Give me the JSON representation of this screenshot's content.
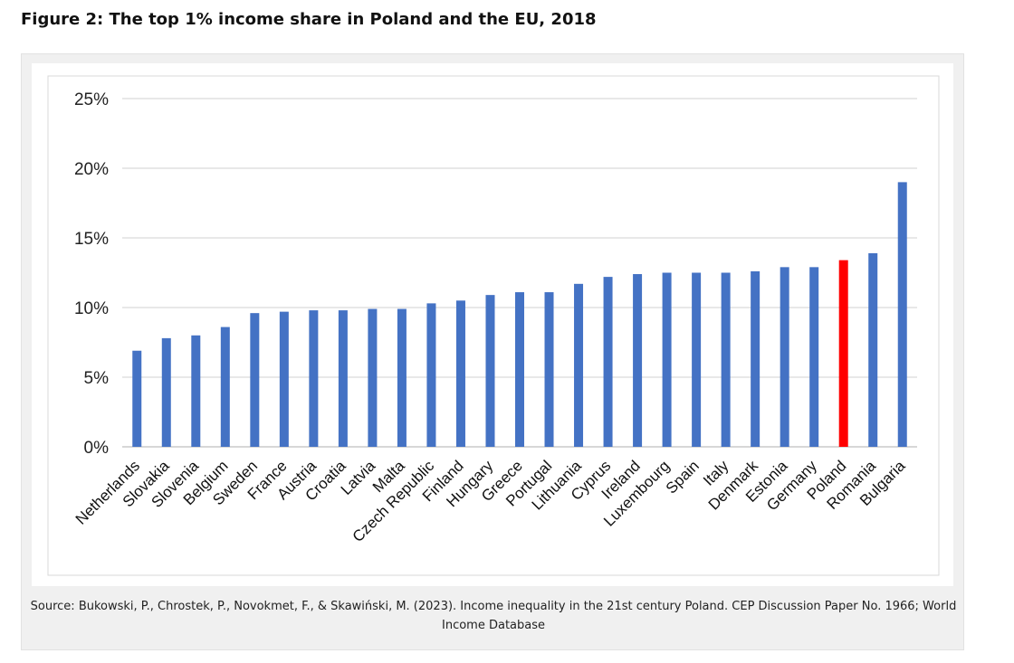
{
  "figure": {
    "title": "Figure 2: The top 1% income share in Poland and the EU, 2018",
    "source": "Source: Bukowski, P., Chrostek, P., Novokmet, F., & Skawiński, M. (2023). Income inequality in the 21st century Poland. CEP Discussion Paper No. 1966; World Income Database"
  },
  "chart_data": {
    "type": "bar",
    "title": "",
    "xlabel": "",
    "ylabel": "",
    "ylim": [
      0,
      25
    ],
    "yticks": [
      0,
      5,
      10,
      15,
      20,
      25
    ],
    "ytick_labels": [
      "0%",
      "5%",
      "10%",
      "15%",
      "20%",
      "25%"
    ],
    "grid": true,
    "legend": "none",
    "categories": [
      "Netherlands",
      "Slovakia",
      "Slovenia",
      "Belgium",
      "Sweden",
      "France",
      "Austria",
      "Croatia",
      "Latvia",
      "Malta",
      "Czech Republic",
      "Finland",
      "Hungary",
      "Greece",
      "Portugal",
      "Lithuania",
      "Cyprus",
      "Ireland",
      "Luxembourg",
      "Spain",
      "Italy",
      "Denmark",
      "Estonia",
      "Germany",
      "Poland",
      "Romania",
      "Bulgaria"
    ],
    "values": [
      6.9,
      7.8,
      8.0,
      8.6,
      9.6,
      9.7,
      9.8,
      9.8,
      9.9,
      9.9,
      10.3,
      10.5,
      10.9,
      11.1,
      11.1,
      11.7,
      12.2,
      12.4,
      12.5,
      12.5,
      12.5,
      12.6,
      12.9,
      12.9,
      13.4,
      13.9,
      19.0
    ],
    "colors": {
      "default_bar": "#4472c4",
      "highlight_bar": "#ff0000",
      "gridline": "#d9d9d9",
      "axis": "#bfbfbf"
    },
    "highlight": "Poland"
  }
}
